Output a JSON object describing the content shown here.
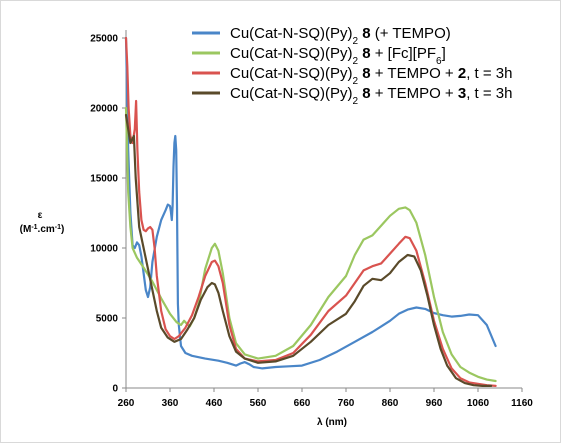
{
  "chart_data": {
    "type": "line",
    "xlabel": "λ (nm)",
    "ylabel_top": "ε",
    "ylabel_unit": "(M-1.cm-1)",
    "xlim": [
      260,
      1160
    ],
    "ylim": [
      0,
      25000
    ],
    "xticks": [
      260,
      360,
      460,
      560,
      660,
      760,
      860,
      960,
      1060,
      1160
    ],
    "yticks": [
      0,
      5000,
      10000,
      15000,
      20000,
      25000
    ],
    "grid": false,
    "legend_position": "top-right",
    "series": [
      {
        "name": "Cu(Cat-N-SQ)(Py)2 8 (+ TEMPO)",
        "legend": [
          {
            "t": "Cu(Cat-N-SQ)(Py)"
          },
          {
            "t": "2",
            "sub": true
          },
          {
            "t": " "
          },
          {
            "t": "8",
            "bold": true
          },
          {
            "t": " (+ TEMPO)"
          }
        ],
        "color": "#4a86c8",
        "points": [
          [
            260,
            25000
          ],
          [
            265,
            17000
          ],
          [
            270,
            12500
          ],
          [
            275,
            10200
          ],
          [
            280,
            10000
          ],
          [
            285,
            10400
          ],
          [
            290,
            10200
          ],
          [
            295,
            9400
          ],
          [
            300,
            8200
          ],
          [
            305,
            7000
          ],
          [
            310,
            6500
          ],
          [
            315,
            7200
          ],
          [
            320,
            9000
          ],
          [
            330,
            10800
          ],
          [
            340,
            12000
          ],
          [
            350,
            12700
          ],
          [
            355,
            13100
          ],
          [
            360,
            13000
          ],
          [
            362,
            12600
          ],
          [
            364,
            12000
          ],
          [
            366,
            13000
          ],
          [
            368,
            15800
          ],
          [
            370,
            17500
          ],
          [
            372,
            18000
          ],
          [
            374,
            17000
          ],
          [
            376,
            13000
          ],
          [
            378,
            6000
          ],
          [
            380,
            4500
          ],
          [
            385,
            3000
          ],
          [
            395,
            2500
          ],
          [
            410,
            2300
          ],
          [
            440,
            2100
          ],
          [
            470,
            1950
          ],
          [
            490,
            1800
          ],
          [
            500,
            1700
          ],
          [
            510,
            1600
          ],
          [
            520,
            1750
          ],
          [
            530,
            1850
          ],
          [
            540,
            1700
          ],
          [
            550,
            1500
          ],
          [
            570,
            1400
          ],
          [
            600,
            1500
          ],
          [
            630,
            1550
          ],
          [
            660,
            1600
          ],
          [
            700,
            2000
          ],
          [
            740,
            2600
          ],
          [
            780,
            3300
          ],
          [
            820,
            4000
          ],
          [
            860,
            4800
          ],
          [
            880,
            5300
          ],
          [
            900,
            5600
          ],
          [
            920,
            5750
          ],
          [
            940,
            5650
          ],
          [
            960,
            5350
          ],
          [
            980,
            5200
          ],
          [
            1000,
            5100
          ],
          [
            1020,
            5150
          ],
          [
            1040,
            5250
          ],
          [
            1060,
            5200
          ],
          [
            1080,
            4500
          ],
          [
            1100,
            3000
          ]
        ]
      },
      {
        "name": "Cu(Cat-N-SQ)(Py)2 8 + [Fc][PF6]",
        "legend": [
          {
            "t": "Cu(Cat-N-SQ)(Py)"
          },
          {
            "t": "2",
            "sub": true
          },
          {
            "t": " "
          },
          {
            "t": "8",
            "bold": true
          },
          {
            "t": " + [Fc][PF"
          },
          {
            "t": "6",
            "sub": true
          },
          {
            "t": "]"
          }
        ],
        "color": "#9bc760",
        "points": [
          [
            260,
            20000
          ],
          [
            265,
            14000
          ],
          [
            270,
            11500
          ],
          [
            275,
            10000
          ],
          [
            285,
            9300
          ],
          [
            300,
            8600
          ],
          [
            320,
            7600
          ],
          [
            340,
            6400
          ],
          [
            360,
            5300
          ],
          [
            375,
            4700
          ],
          [
            385,
            4500
          ],
          [
            392,
            4800
          ],
          [
            398,
            4600
          ],
          [
            405,
            4400
          ],
          [
            415,
            5000
          ],
          [
            425,
            6000
          ],
          [
            440,
            8500
          ],
          [
            455,
            10000
          ],
          [
            462,
            10300
          ],
          [
            470,
            9800
          ],
          [
            480,
            8200
          ],
          [
            495,
            5000
          ],
          [
            510,
            3200
          ],
          [
            530,
            2400
          ],
          [
            560,
            2100
          ],
          [
            600,
            2300
          ],
          [
            640,
            3000
          ],
          [
            680,
            4500
          ],
          [
            720,
            6500
          ],
          [
            760,
            8000
          ],
          [
            780,
            9500
          ],
          [
            800,
            10600
          ],
          [
            820,
            10900
          ],
          [
            840,
            11600
          ],
          [
            860,
            12300
          ],
          [
            880,
            12800
          ],
          [
            895,
            12900
          ],
          [
            905,
            12700
          ],
          [
            920,
            11800
          ],
          [
            940,
            9500
          ],
          [
            960,
            6500
          ],
          [
            980,
            4000
          ],
          [
            1000,
            2400
          ],
          [
            1020,
            1500
          ],
          [
            1040,
            1100
          ],
          [
            1060,
            800
          ],
          [
            1080,
            600
          ],
          [
            1100,
            500
          ]
        ]
      },
      {
        "name": "Cu(Cat-N-SQ)(Py)2 8 + TEMPO + 2, t = 3h",
        "legend": [
          {
            "t": "Cu(Cat-N-SQ)(Py)"
          },
          {
            "t": "2",
            "sub": true
          },
          {
            "t": " "
          },
          {
            "t": "8",
            "bold": true
          },
          {
            "t": " + TEMPO + "
          },
          {
            "t": "2",
            "bold": true
          },
          {
            "t": ", t = 3h"
          }
        ],
        "color": "#d9534f",
        "points": [
          [
            260,
            25000
          ],
          [
            263,
            23000
          ],
          [
            266,
            20000
          ],
          [
            270,
            18000
          ],
          [
            275,
            17500
          ],
          [
            280,
            18500
          ],
          [
            283,
            20500
          ],
          [
            286,
            17000
          ],
          [
            290,
            14000
          ],
          [
            295,
            12000
          ],
          [
            300,
            11300
          ],
          [
            305,
            11200
          ],
          [
            310,
            11400
          ],
          [
            315,
            11500
          ],
          [
            320,
            11300
          ],
          [
            325,
            10000
          ],
          [
            330,
            8000
          ],
          [
            340,
            5500
          ],
          [
            350,
            4200
          ],
          [
            360,
            3700
          ],
          [
            370,
            3500
          ],
          [
            380,
            3700
          ],
          [
            395,
            4300
          ],
          [
            410,
            5200
          ],
          [
            425,
            6500
          ],
          [
            440,
            8000
          ],
          [
            455,
            9000
          ],
          [
            462,
            9100
          ],
          [
            470,
            8700
          ],
          [
            480,
            7500
          ],
          [
            495,
            4500
          ],
          [
            510,
            2800
          ],
          [
            530,
            2100
          ],
          [
            560,
            1900
          ],
          [
            600,
            2000
          ],
          [
            640,
            2500
          ],
          [
            680,
            3800
          ],
          [
            720,
            5500
          ],
          [
            760,
            6600
          ],
          [
            780,
            7500
          ],
          [
            800,
            8400
          ],
          [
            820,
            8700
          ],
          [
            840,
            8900
          ],
          [
            860,
            9600
          ],
          [
            880,
            10300
          ],
          [
            895,
            10800
          ],
          [
            905,
            10700
          ],
          [
            920,
            9800
          ],
          [
            940,
            7500
          ],
          [
            960,
            4800
          ],
          [
            980,
            2800
          ],
          [
            1000,
            1400
          ],
          [
            1020,
            700
          ],
          [
            1040,
            400
          ],
          [
            1060,
            300
          ],
          [
            1080,
            200
          ],
          [
            1100,
            150
          ]
        ]
      },
      {
        "name": "Cu(Cat-N-SQ)(Py)2 8 + TEMPO + 3, t = 3h",
        "legend": [
          {
            "t": "Cu(Cat-N-SQ)(Py)"
          },
          {
            "t": "2",
            "sub": true
          },
          {
            "t": " "
          },
          {
            "t": "8",
            "bold": true
          },
          {
            "t": " + TEMPO + "
          },
          {
            "t": "3",
            "bold": true
          },
          {
            "t": ", t = 3h"
          }
        ],
        "color": "#5a4a2a",
        "points": [
          [
            260,
            19500
          ],
          [
            265,
            18500
          ],
          [
            270,
            17500
          ],
          [
            278,
            18000
          ],
          [
            282,
            15000
          ],
          [
            290,
            11500
          ],
          [
            300,
            10000
          ],
          [
            310,
            8500
          ],
          [
            320,
            7000
          ],
          [
            330,
            5500
          ],
          [
            340,
            4300
          ],
          [
            355,
            3600
          ],
          [
            370,
            3300
          ],
          [
            385,
            3500
          ],
          [
            400,
            4200
          ],
          [
            415,
            5000
          ],
          [
            430,
            6300
          ],
          [
            445,
            7200
          ],
          [
            455,
            7500
          ],
          [
            462,
            7400
          ],
          [
            470,
            6800
          ],
          [
            480,
            5500
          ],
          [
            495,
            3700
          ],
          [
            510,
            2600
          ],
          [
            530,
            2100
          ],
          [
            560,
            1800
          ],
          [
            600,
            1900
          ],
          [
            640,
            2300
          ],
          [
            680,
            3300
          ],
          [
            720,
            4500
          ],
          [
            760,
            5300
          ],
          [
            780,
            6200
          ],
          [
            800,
            7300
          ],
          [
            820,
            7800
          ],
          [
            840,
            7700
          ],
          [
            860,
            8200
          ],
          [
            880,
            9000
          ],
          [
            900,
            9500
          ],
          [
            915,
            9400
          ],
          [
            930,
            8400
          ],
          [
            945,
            6600
          ],
          [
            960,
            4500
          ],
          [
            975,
            2800
          ],
          [
            990,
            1600
          ],
          [
            1010,
            700
          ],
          [
            1030,
            350
          ],
          [
            1050,
            200
          ],
          [
            1070,
            150
          ],
          [
            1090,
            150
          ]
        ]
      }
    ]
  }
}
